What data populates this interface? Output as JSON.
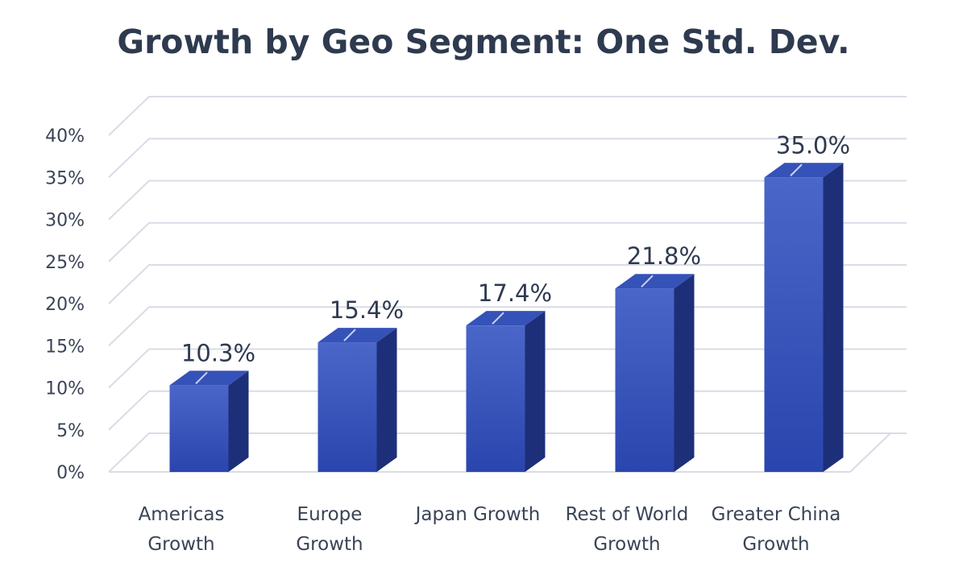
{
  "chart_data": {
    "type": "bar",
    "title": "Growth by Geo Segment: One Std. Dev.",
    "categories": [
      [
        "Americas",
        "Growth"
      ],
      [
        "Europe",
        "Growth"
      ],
      [
        "Japan Growth"
      ],
      [
        "Rest of World",
        "Growth"
      ],
      [
        "Greater China",
        "Growth"
      ]
    ],
    "values": [
      10.3,
      15.4,
      17.4,
      21.8,
      35.0
    ],
    "data_labels": [
      "10.3%",
      "15.4%",
      "17.4%",
      "21.8%",
      "35.0%"
    ],
    "y_ticks": [
      0,
      5,
      10,
      15,
      20,
      25,
      30,
      35,
      40
    ],
    "y_tick_labels": [
      "0%",
      "5%",
      "10%",
      "15%",
      "20%",
      "25%",
      "30%",
      "35%",
      "40%"
    ],
    "ylim": [
      0,
      40
    ],
    "grid": true,
    "style": "3d-column",
    "colors": {
      "bar_front_top": "#4a66c8",
      "bar_front_bottom": "#2a46ae",
      "bar_side": "#1d2f78",
      "bar_top": "#3552b8",
      "gridline": "#d9dce6",
      "title": "#2e3a4f",
      "text": "#3a4456"
    }
  }
}
